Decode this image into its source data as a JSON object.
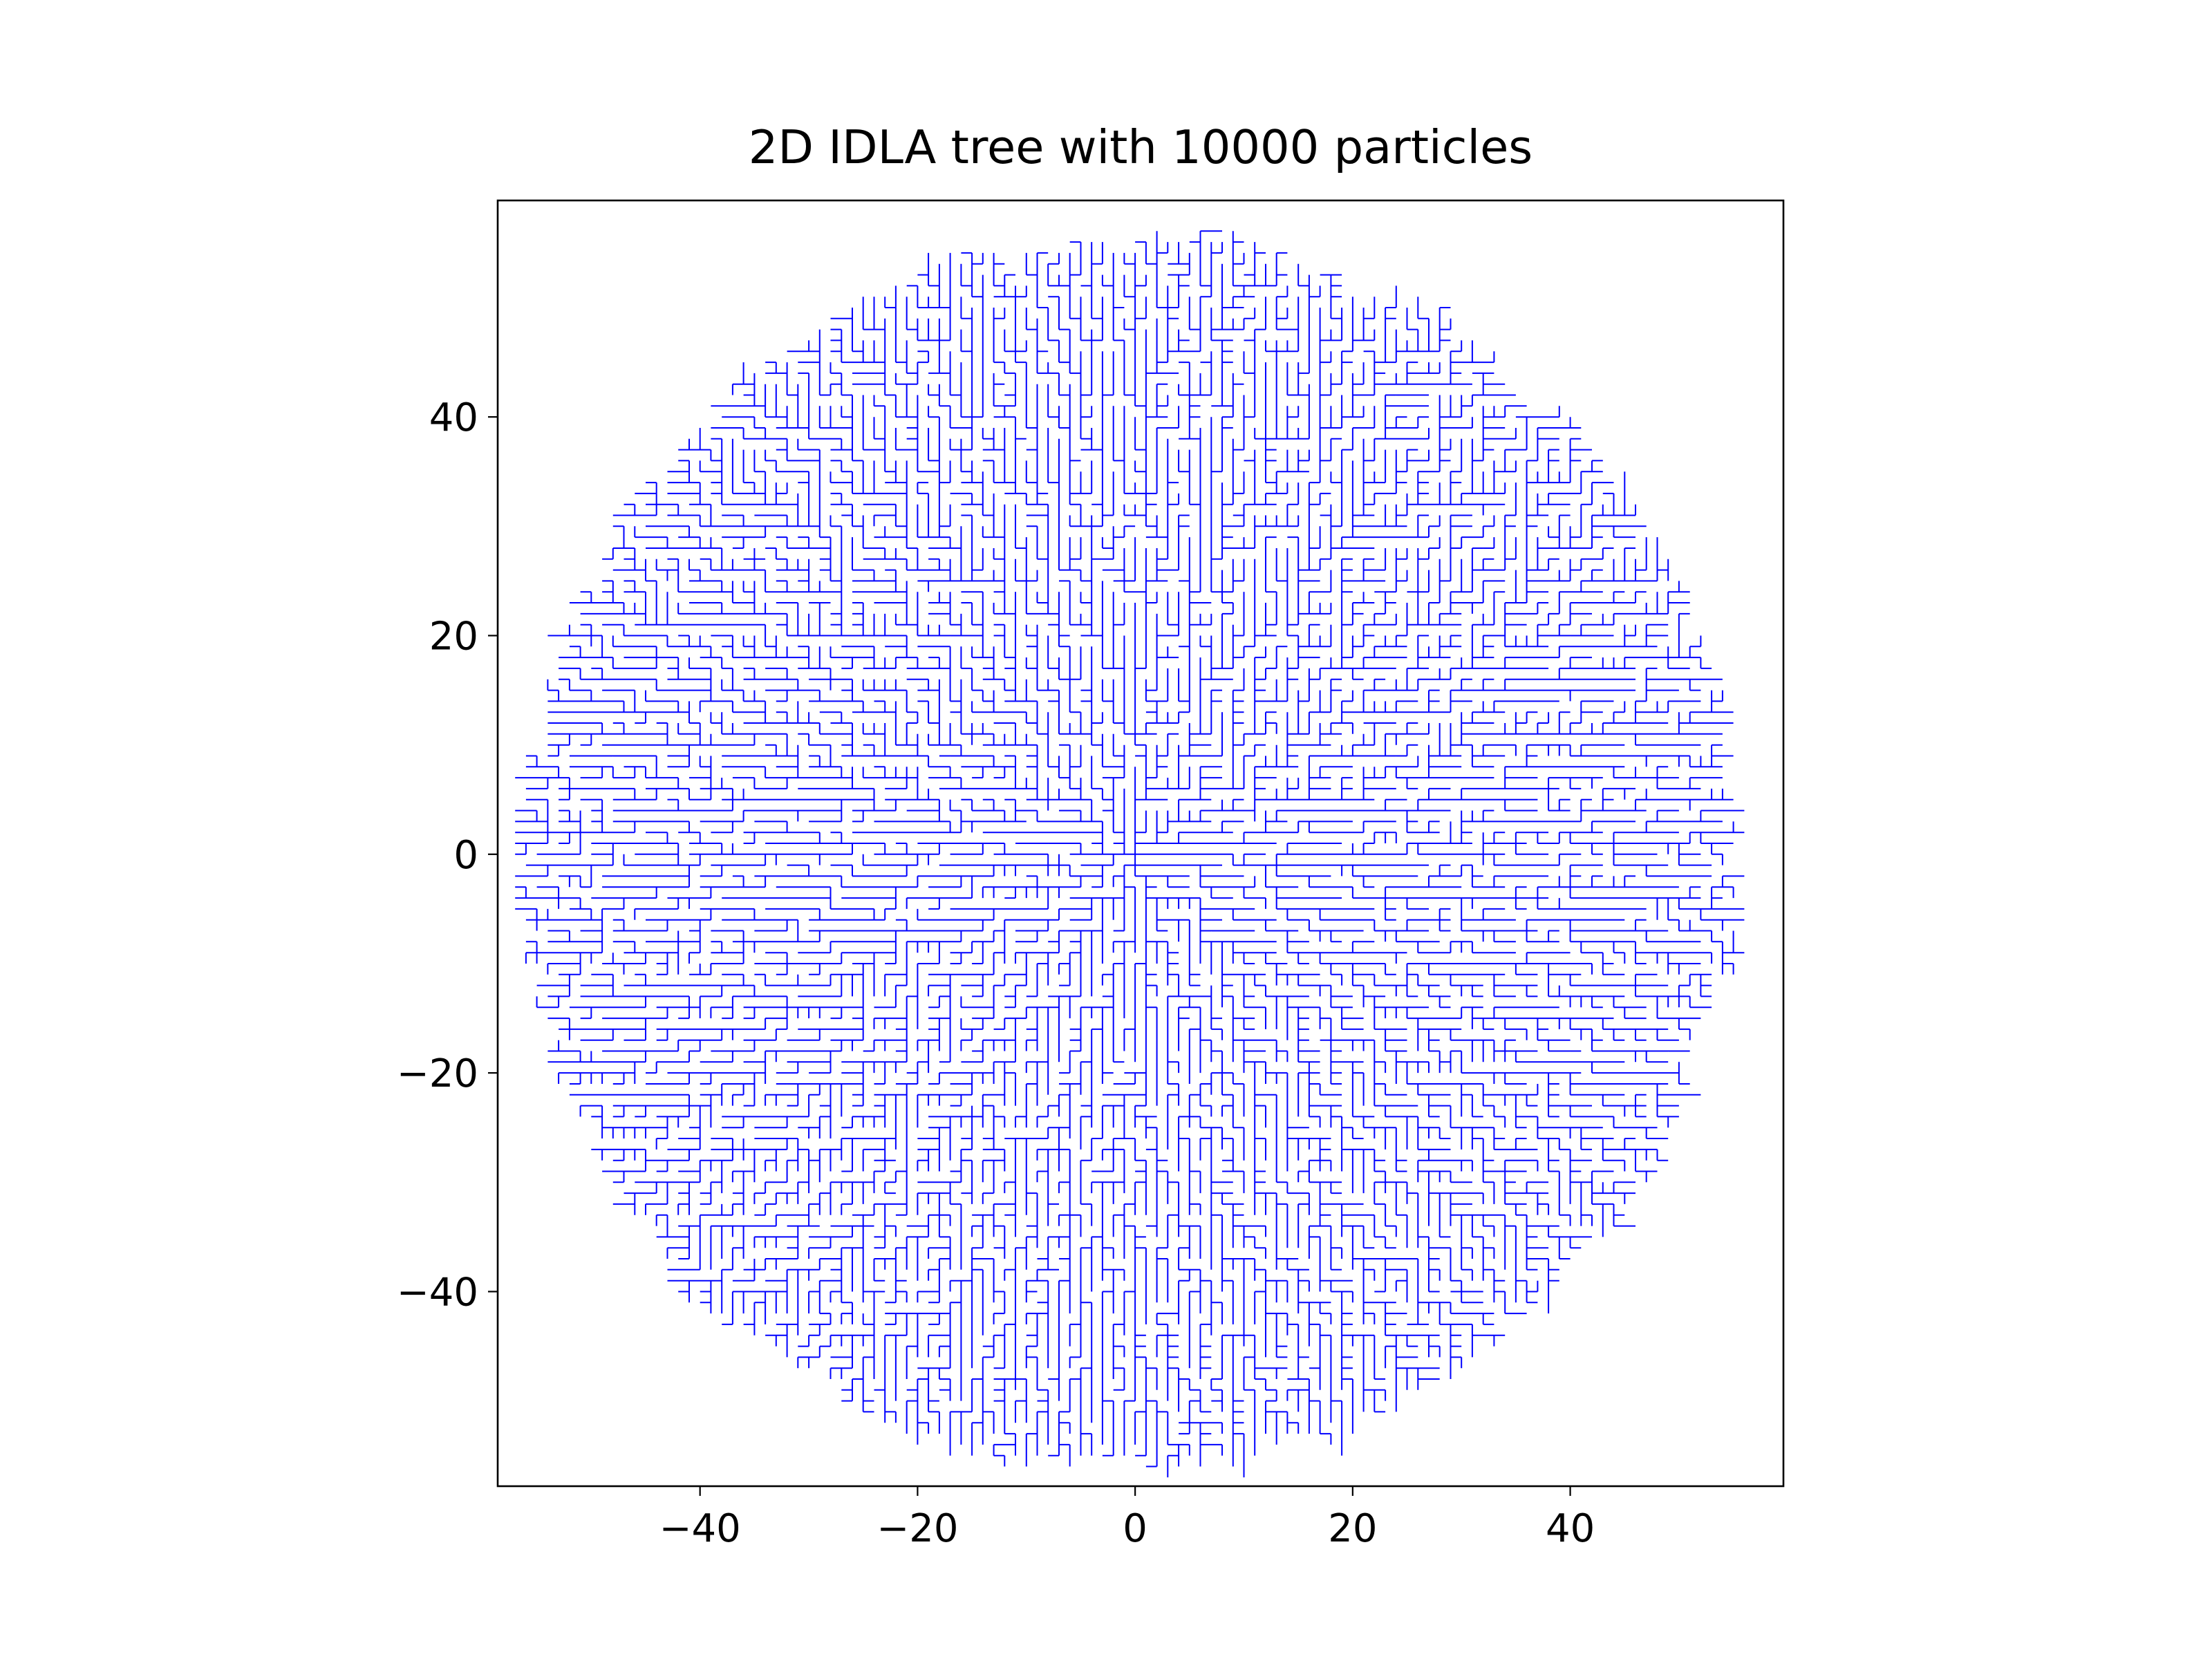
{
  "chart_data": {
    "type": "line",
    "title": "2D IDLA tree with 10000 particles",
    "xlabel": "",
    "ylabel": "",
    "xlim": [
      -58.6,
      59.6
    ],
    "ylim": [
      -57.8,
      59.8
    ],
    "x_ticks": [
      -40,
      -20,
      0,
      20,
      40
    ],
    "y_ticks": [
      -40,
      -20,
      0,
      20,
      40
    ],
    "x_tick_labels": [
      "−40",
      "−20",
      "0",
      "20",
      "40"
    ],
    "y_tick_labels": [
      "−40",
      "−20",
      "0",
      "20",
      "40"
    ],
    "grid": false,
    "legend": "none",
    "series": [
      {
        "particles": 10000,
        "origin": [
          0,
          0
        ],
        "lattice": "square",
        "color": "#0000ff"
      }
    ]
  }
}
